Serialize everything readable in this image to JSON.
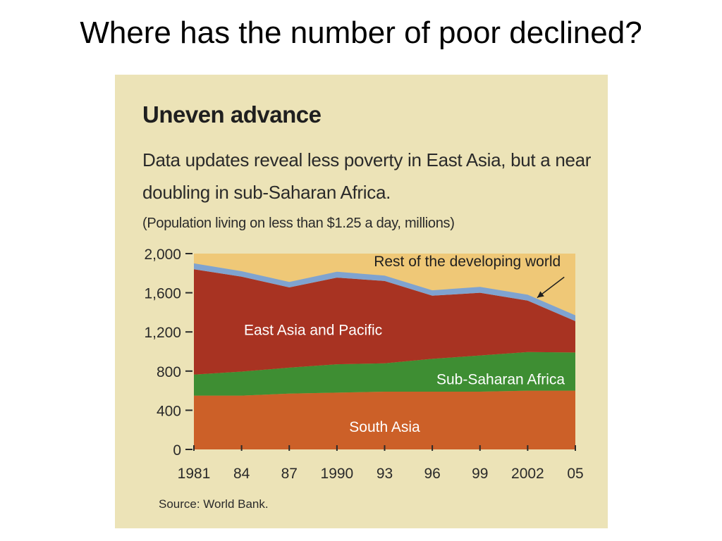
{
  "slide": {
    "title": "Where has the number of poor declined?"
  },
  "chart_data": {
    "type": "area",
    "stacked": true,
    "title": "Uneven advance",
    "subtitle": "Data updates reveal less poverty in East Asia, but a near doubling in sub-Saharan Africa.",
    "unit_note": "(Population living on less than $1.25 a day, millions)",
    "source": "Source: World Bank.",
    "x": [
      1981,
      1984,
      1987,
      1990,
      1993,
      1996,
      1999,
      2002,
      2005
    ],
    "x_tick_labels": [
      "1981",
      "84",
      "87",
      "1990",
      "93",
      "96",
      "99",
      "2002",
      "05"
    ],
    "y_ticks": [
      0,
      400,
      800,
      1200,
      1600,
      2000
    ],
    "y_tick_labels": [
      "0",
      "400",
      "800",
      "1,200",
      "1,600",
      "2,000"
    ],
    "ylim": [
      0,
      2000
    ],
    "grid": false,
    "legend": "inline labels",
    "series": [
      {
        "name": "South Asia",
        "color": "#cc6028",
        "label_color": "#ffffff",
        "values": [
          550,
          550,
          570,
          580,
          590,
          590,
          590,
          600,
          600
        ]
      },
      {
        "name": "Sub-Saharan Africa",
        "color": "#3e8e33",
        "label_color": "#ffffff",
        "values": [
          215,
          245,
          265,
          290,
          290,
          335,
          370,
          395,
          390
        ]
      },
      {
        "name": "East Asia and Pacific",
        "color": "#a83322",
        "label_color": "#ffffff",
        "values": [
          1075,
          970,
          820,
          885,
          840,
          645,
          640,
          525,
          320
        ]
      },
      {
        "name": "Rest of the developing world",
        "color": "#7fa3d0",
        "label_color": "#1f1f1f",
        "values": [
          60,
          55,
          55,
          60,
          55,
          55,
          60,
          60,
          60
        ]
      }
    ],
    "plot_background": "#efc877"
  }
}
